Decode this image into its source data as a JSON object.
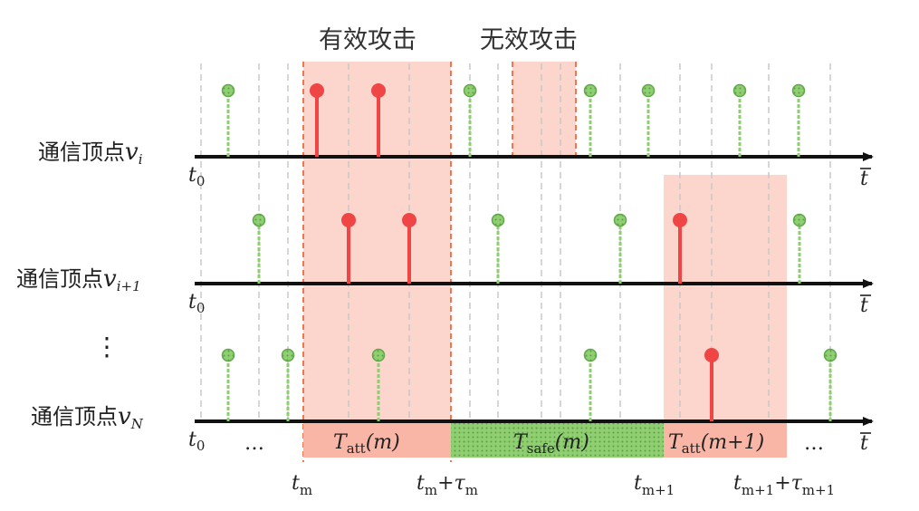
{
  "top_labels": {
    "effective": "有效攻击",
    "ineffective": "无效攻击"
  },
  "rows": [
    {
      "id": "vi",
      "label_cn": "通信顶点",
      "label_var": "v",
      "label_sub": "i",
      "t0": "t",
      "t0_sub": "0",
      "t_end": "t",
      "green": [
        252,
        519,
        652,
        716,
        817,
        882
      ],
      "red": [
        350,
        418
      ]
    },
    {
      "id": "vi1",
      "label_cn": "通信顶点",
      "label_var": "v",
      "label_sub": "i+1",
      "t0": "t",
      "t0_sub": "0",
      "t_end": "t",
      "green": [
        286,
        550,
        685,
        883
      ],
      "red": [
        385,
        452,
        751
      ]
    },
    {
      "id": "vN",
      "label_cn": "通信顶点",
      "label_var": "v",
      "label_sub": "N",
      "t0": "t",
      "t0_sub": "0",
      "t_end": "t",
      "green": [
        252,
        318,
        418,
        652,
        917
      ],
      "red": [
        786
      ]
    }
  ],
  "vdots": "⋮",
  "segments": {
    "att_m": {
      "sym": "T",
      "sub": "att",
      "arg": "(m)"
    },
    "safe_m": {
      "sym": "T",
      "sub": "safe",
      "arg": "(m)"
    },
    "att_m1": {
      "sym": "T",
      "sub": "att",
      "arg": "(m+1)"
    }
  },
  "ellipsis": "…",
  "time_marks": {
    "tm": {
      "t": "t",
      "sub": "m"
    },
    "tm_tau": {
      "t": "t",
      "sub": "m",
      "plus": "+",
      "tau": "τ",
      "tau_sub": "m"
    },
    "tm1": {
      "t": "t",
      "sub": "m+1"
    },
    "tm1_tau": {
      "t": "t",
      "sub": "m+1",
      "plus": "+",
      "tau": "τ",
      "tau_sub": "m+1"
    }
  },
  "colors": {
    "green": "#8ccf6e",
    "green_dark": "#5fa84a",
    "red": "#f04545",
    "attack_shade": "#fcd5cc",
    "safe_fill": "#86c56a",
    "axis": "#111111"
  }
}
